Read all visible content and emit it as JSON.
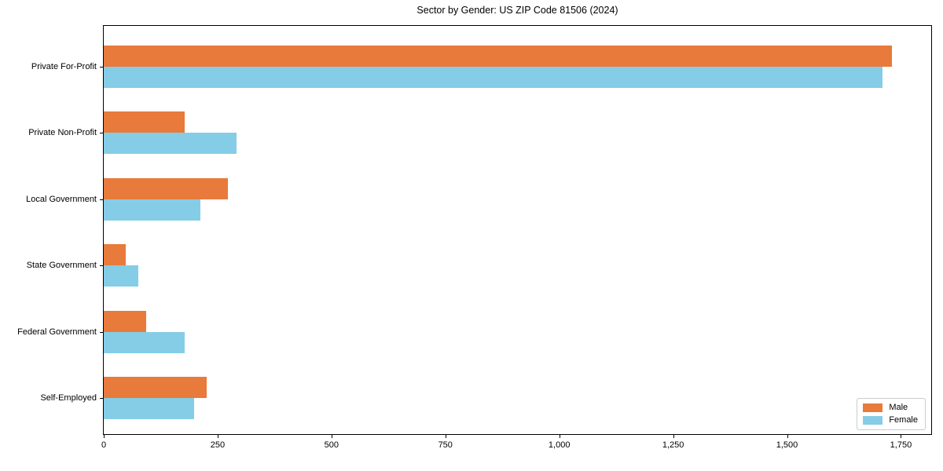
{
  "chart_data": {
    "type": "bar",
    "orientation": "horizontal",
    "title": "Sector by Gender: US ZIP Code 81506 (2024)",
    "categories": [
      "Private For-Profit",
      "Private Non-Profit",
      "Local Government",
      "State Government",
      "Federal Government",
      "Self-Employed"
    ],
    "series": [
      {
        "name": "Male",
        "color": "#e87a3c",
        "values": [
          1730,
          178,
          272,
          48,
          93,
          226
        ]
      },
      {
        "name": "Female",
        "color": "#85cde6",
        "values": [
          1710,
          291,
          212,
          76,
          177,
          198
        ]
      }
    ],
    "xlabel": "",
    "ylabel": "",
    "xlim": [
      0,
      1816.5
    ],
    "x_ticks": [
      {
        "value": 0,
        "label": "0"
      },
      {
        "value": 250,
        "label": "250"
      },
      {
        "value": 500,
        "label": "500"
      },
      {
        "value": 750,
        "label": "750"
      },
      {
        "value": 1000,
        "label": "1,000"
      },
      {
        "value": 1250,
        "label": "1,250"
      },
      {
        "value": 1500,
        "label": "1,500"
      },
      {
        "value": 1750,
        "label": "1,750"
      }
    ],
    "grid": false,
    "legend": {
      "position": "lower-right",
      "entries": [
        "Male",
        "Female"
      ]
    },
    "colors": {
      "spine": "#000000",
      "text": "#000000",
      "legend_border": "#cccccc",
      "background": "#ffffff"
    }
  }
}
